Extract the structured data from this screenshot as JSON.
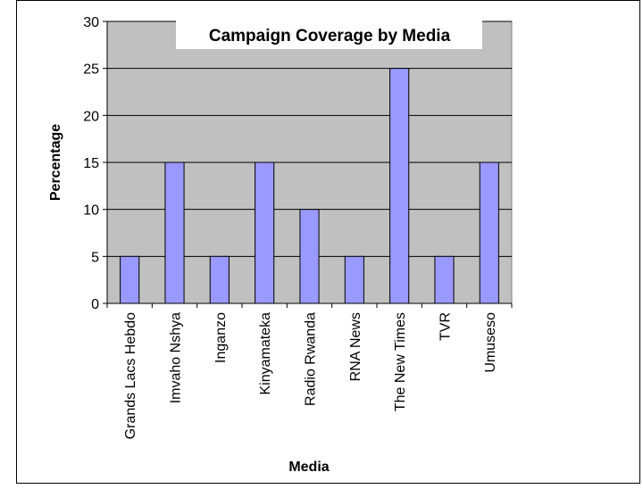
{
  "chart_data": {
    "type": "bar",
    "title": "Campaign Coverage by Media",
    "xlabel": "Media",
    "ylabel": "Percentage",
    "categories": [
      "Grands Lacs Hebdo",
      "Imvaho Nshya",
      "Inganzo",
      "Kinyamateka",
      "Radio Rwanda",
      "RNA News",
      "The New Times",
      "TVR",
      "Umuseso"
    ],
    "values": [
      5,
      15,
      5,
      15,
      10,
      5,
      25,
      5,
      15
    ],
    "ylim": [
      0,
      30
    ],
    "yticks": [
      "0",
      "5",
      "10",
      "15",
      "20",
      "25",
      "30"
    ],
    "grid": true,
    "colors": {
      "bar_fill": "#9999ff",
      "plot_background": "#c0c0c0",
      "gridline": "#000000"
    }
  }
}
